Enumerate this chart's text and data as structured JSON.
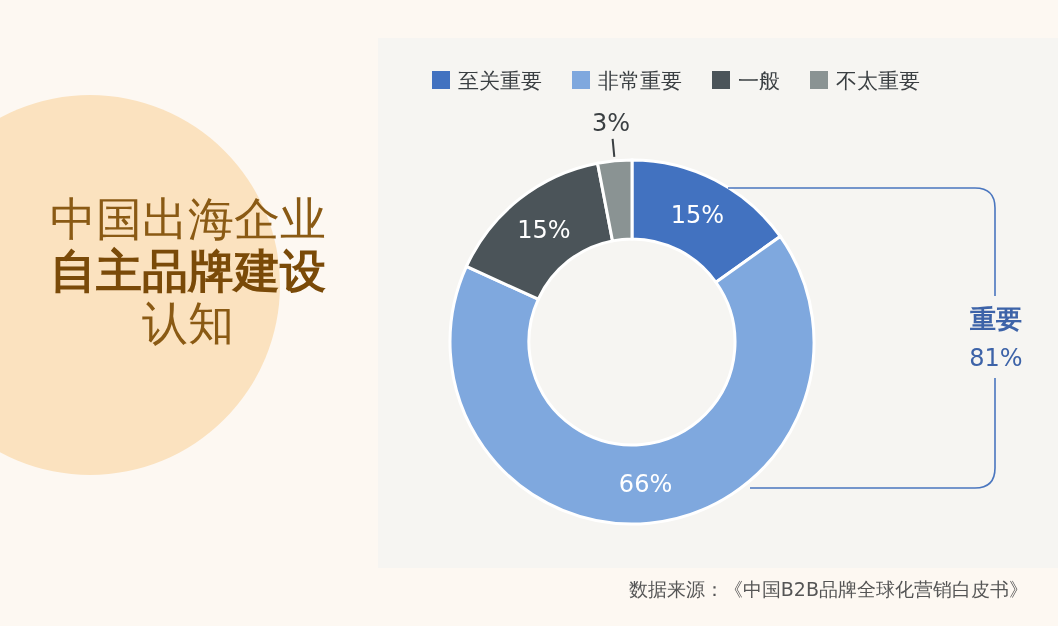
{
  "chart_data": {
    "type": "donut",
    "title": "中国出海企业自主品牌建设认知",
    "categories": [
      "至关重要",
      "非常重要",
      "一般",
      "不太重要"
    ],
    "values": [
      15,
      66,
      15,
      3
    ],
    "colors": [
      "#4272c0",
      "#7fa8de",
      "#4b5459",
      "#8a9393"
    ],
    "value_labels": [
      "15%",
      "66%",
      "15%",
      "3%"
    ],
    "legend": "top",
    "annotations": [
      "重要",
      "81%",
      "数据来源：《中国B2B品牌全球化营销白皮书》"
    ]
  }
}
